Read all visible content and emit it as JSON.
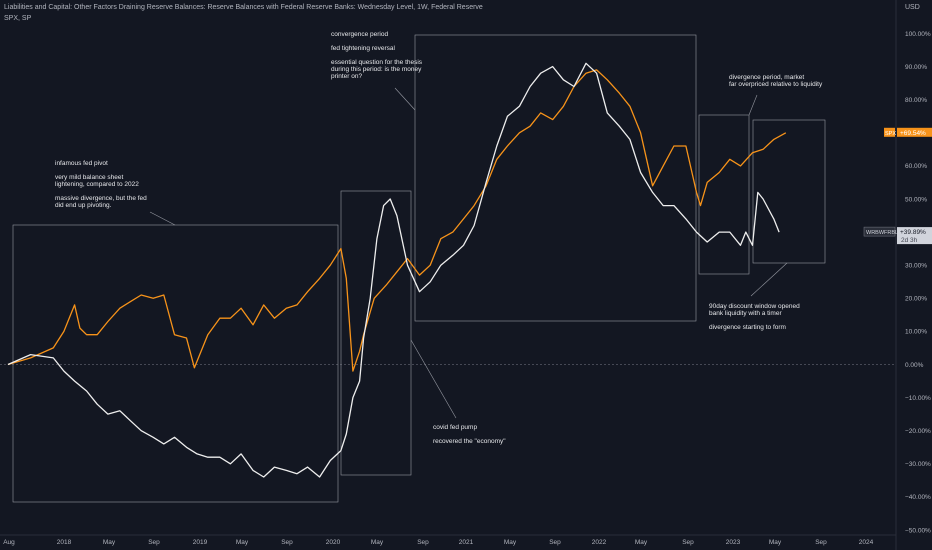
{
  "header": {
    "title": "Liabilities and Capital: Other Factors Draining Reserve Balances: Reserve Balances with Federal Reserve Banks: Wednesday Level, 1W, Federal Reserve",
    "subtitle": "SPX, SP",
    "currency": "USD"
  },
  "chart_data": {
    "type": "line",
    "y_unit": "%",
    "ylim": [
      -52,
      104
    ],
    "x_ticks": [
      "Aug",
      "2018",
      "May",
      "Sep",
      "2019",
      "May",
      "Sep",
      "2020",
      "May",
      "Sep",
      "2021",
      "May",
      "Sep",
      "2022",
      "May",
      "Sep",
      "2023",
      "May",
      "Sep",
      "2024"
    ],
    "y_ticks": [
      "100.00%",
      "90.00%",
      "80.00%",
      "70.00%",
      "60.00%",
      "50.00%",
      "40.00%",
      "30.00%",
      "20.00%",
      "10.00%",
      "0.00%",
      "−10.00%",
      "−20.00%",
      "−30.00%",
      "−40.00%",
      "−50.00%"
    ],
    "series": [
      {
        "name": "SPX",
        "color": "#f7931a",
        "last_label": "+69.54%",
        "x": [
          2017.58,
          2017.75,
          2017.92,
          2018.0,
          2018.08,
          2018.12,
          2018.17,
          2018.25,
          2018.33,
          2018.42,
          2018.5,
          2018.58,
          2018.67,
          2018.75,
          2018.83,
          2018.92,
          2018.98,
          2019.08,
          2019.17,
          2019.25,
          2019.33,
          2019.42,
          2019.5,
          2019.58,
          2019.67,
          2019.75,
          2019.83,
          2019.92,
          2020.0,
          2020.08,
          2020.12,
          2020.17,
          2020.22,
          2020.25,
          2020.33,
          2020.42,
          2020.5,
          2020.58,
          2020.67,
          2020.75,
          2020.83,
          2020.92,
          2021.0,
          2021.08,
          2021.17,
          2021.25,
          2021.33,
          2021.42,
          2021.5,
          2021.58,
          2021.67,
          2021.75,
          2021.83,
          2021.92,
          2022.0,
          2022.08,
          2022.17,
          2022.25,
          2022.33,
          2022.42,
          2022.5,
          2022.58,
          2022.67,
          2022.75,
          2022.78,
          2022.83,
          2022.92,
          2023.0,
          2023.08,
          2023.17,
          2023.25,
          2023.33,
          2023.42
        ],
        "y": [
          0,
          2,
          5,
          10,
          18,
          11,
          9,
          9,
          13,
          17,
          19,
          21,
          20,
          21,
          9,
          8,
          -1,
          9,
          14,
          14,
          17,
          12,
          18,
          14,
          17,
          18,
          22,
          26,
          30,
          35,
          26,
          -2,
          4,
          9,
          20,
          24,
          28,
          32,
          27,
          30,
          38,
          40,
          44,
          48,
          54,
          62,
          66,
          70,
          72,
          76,
          74,
          78,
          84,
          88,
          89,
          86,
          82,
          78,
          70,
          54,
          60,
          66,
          66,
          52,
          48,
          55,
          58,
          62,
          60,
          64,
          65,
          68,
          70
        ]
      },
      {
        "name": "WRBWFRBL",
        "color": "#eeeeee",
        "last_label": "+39.89%",
        "x": [
          2017.58,
          2017.75,
          2017.92,
          2018.0,
          2018.08,
          2018.17,
          2018.25,
          2018.33,
          2018.42,
          2018.5,
          2018.58,
          2018.67,
          2018.75,
          2018.83,
          2018.92,
          2019.0,
          2019.08,
          2019.17,
          2019.25,
          2019.33,
          2019.42,
          2019.5,
          2019.58,
          2019.67,
          2019.75,
          2019.83,
          2019.92,
          2020.0,
          2020.08,
          2020.12,
          2020.17,
          2020.22,
          2020.25,
          2020.3,
          2020.35,
          2020.4,
          2020.45,
          2020.5,
          2020.58,
          2020.67,
          2020.75,
          2020.83,
          2020.92,
          2021.0,
          2021.08,
          2021.17,
          2021.25,
          2021.33,
          2021.42,
          2021.5,
          2021.58,
          2021.67,
          2021.75,
          2021.83,
          2021.92,
          2022.0,
          2022.08,
          2022.17,
          2022.25,
          2022.33,
          2022.42,
          2022.5,
          2022.58,
          2022.67,
          2022.75,
          2022.83,
          2022.92,
          2023.0,
          2023.08,
          2023.12,
          2023.17,
          2023.21,
          2023.25,
          2023.33,
          2023.37
        ],
        "y": [
          0,
          3,
          2,
          -2,
          -5,
          -8,
          -12,
          -15,
          -14,
          -17,
          -20,
          -22,
          -24,
          -22,
          -25,
          -27,
          -28,
          -28,
          -30,
          -27,
          -32,
          -34,
          -31,
          -32,
          -33,
          -31,
          -34,
          -29,
          -26,
          -21,
          -10,
          -5,
          8,
          20,
          38,
          48,
          50,
          45,
          30,
          22,
          25,
          30,
          33,
          36,
          42,
          55,
          66,
          75,
          78,
          84,
          88,
          90,
          86,
          84,
          91,
          88,
          76,
          72,
          68,
          58,
          52,
          48,
          48,
          44,
          40,
          37,
          40,
          40,
          36,
          40,
          36,
          52,
          50,
          44,
          40
        ]
      }
    ],
    "annotations": [
      {
        "id": "pivot",
        "lines": [
          "infamous fed pivot",
          "",
          "very mild balance sheet",
          "lightening, compared to 2022",
          "",
          "massive divergence, but the fed",
          "did end up pivoting."
        ]
      },
      {
        "id": "convergence",
        "lines": [
          "convergence period",
          "",
          "fed tightening reversal",
          "",
          "essential question for the thesis",
          "during this period: is the money",
          "printer on?"
        ]
      },
      {
        "id": "divergence",
        "lines": [
          "divergence period, market",
          "far overpriced relative to liquidity"
        ]
      },
      {
        "id": "covid",
        "lines": [
          "covid fed pump",
          "",
          "recovered the \"economy\""
        ]
      },
      {
        "id": "discount",
        "lines": [
          "90day discount window opened",
          "bank liquidity with a timer",
          "",
          "divergence starting to form"
        ]
      }
    ],
    "wr_extra_label": "2d 3h",
    "grid": "off",
    "legend": "none"
  }
}
